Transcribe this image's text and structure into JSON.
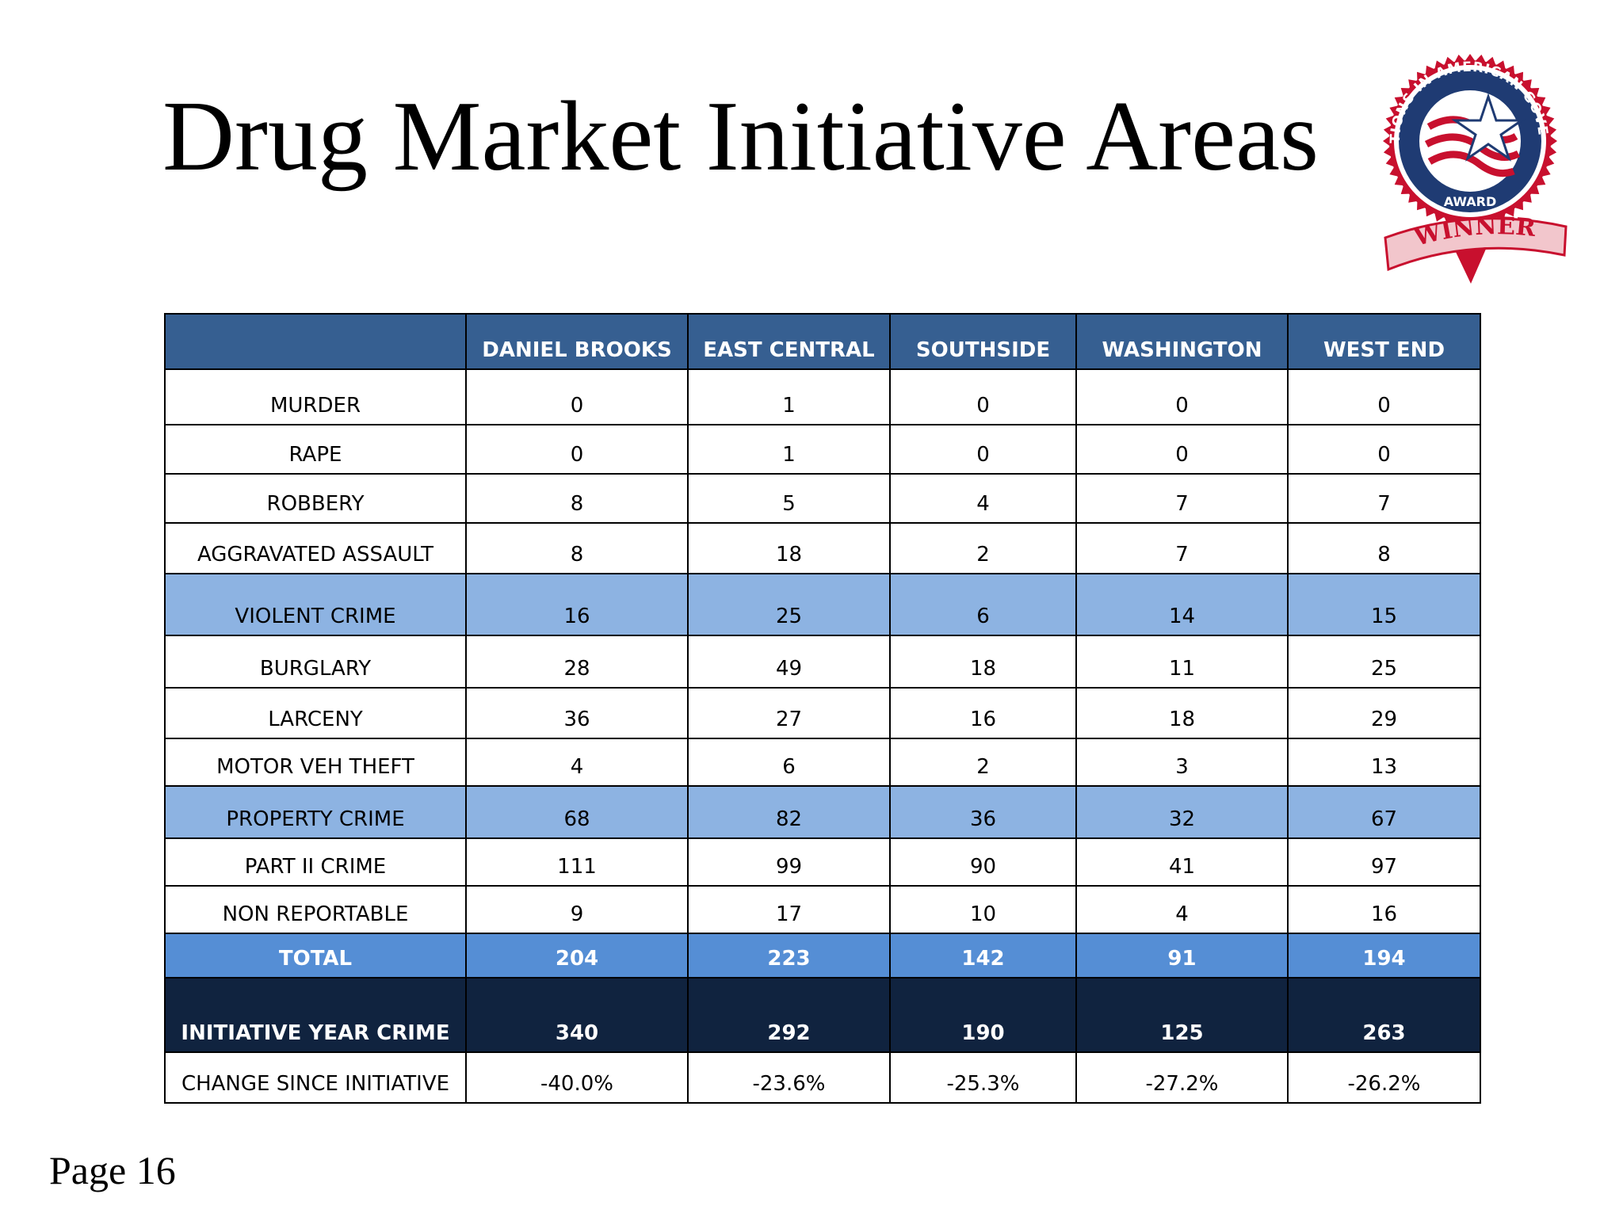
{
  "slide": {
    "title": "Drug Market Initiative Areas",
    "page_label": "Page 16"
  },
  "badge": {
    "icon": "award-winner-seal-icon",
    "ring_text": "INNOVATIONS IN AMERICAN GOVERNMENT",
    "award_text": "AWARD",
    "ribbon_text": "WINNER",
    "colors": {
      "red": "#c8102e",
      "navy": "#1f3b73",
      "ribbon": "#f2c6cc"
    }
  },
  "table": {
    "corner": "",
    "columns": [
      "DANIEL BROOKS",
      "EAST CENTRAL",
      "SOUTHSIDE",
      "WASHINGTON",
      "WEST END"
    ],
    "rows": [
      {
        "type": "normal",
        "label": "MURDER",
        "values": [
          "0",
          "1",
          "0",
          "0",
          "0"
        ]
      },
      {
        "type": "normal",
        "label": "RAPE",
        "values": [
          "0",
          "1",
          "0",
          "0",
          "0"
        ]
      },
      {
        "type": "normal",
        "label": "ROBBERY",
        "values": [
          "8",
          "5",
          "4",
          "7",
          "7"
        ]
      },
      {
        "type": "normal",
        "label": "AGGRAVATED ASSAULT",
        "values": [
          "8",
          "18",
          "2",
          "7",
          "8"
        ]
      },
      {
        "type": "sub",
        "label": "VIOLENT CRIME",
        "values": [
          "16",
          "25",
          "6",
          "14",
          "15"
        ]
      },
      {
        "type": "normal",
        "label": "BURGLARY",
        "values": [
          "28",
          "49",
          "18",
          "11",
          "25"
        ]
      },
      {
        "type": "normal",
        "label": "LARCENY",
        "values": [
          "36",
          "27",
          "16",
          "18",
          "29"
        ]
      },
      {
        "type": "normal",
        "label": "MOTOR VEH THEFT",
        "values": [
          "4",
          "6",
          "2",
          "3",
          "13"
        ]
      },
      {
        "type": "sub",
        "label": "PROPERTY CRIME",
        "values": [
          "68",
          "82",
          "36",
          "32",
          "67"
        ]
      },
      {
        "type": "normal",
        "label": "PART II CRIME",
        "values": [
          "111",
          "99",
          "90",
          "41",
          "97"
        ]
      },
      {
        "type": "normal",
        "label": "NON REPORTABLE",
        "values": [
          "9",
          "17",
          "10",
          "4",
          "16"
        ]
      },
      {
        "type": "total",
        "label": "TOTAL",
        "values": [
          "204",
          "223",
          "142",
          "91",
          "194"
        ]
      },
      {
        "type": "initiative",
        "label": "INITIATIVE YEAR CRIME",
        "values": [
          "340",
          "292",
          "190",
          "125",
          "263"
        ]
      },
      {
        "type": "normal",
        "label": "CHANGE SINCE INITIATIVE",
        "values": [
          "-40.0%",
          "-23.6%",
          "-25.3%",
          "-27.2%",
          "-26.2%"
        ]
      }
    ],
    "colors": {
      "header": "#365f91",
      "subtotal": "#8db3e2",
      "total": "#558ed5",
      "initiative": "#10233f"
    }
  }
}
